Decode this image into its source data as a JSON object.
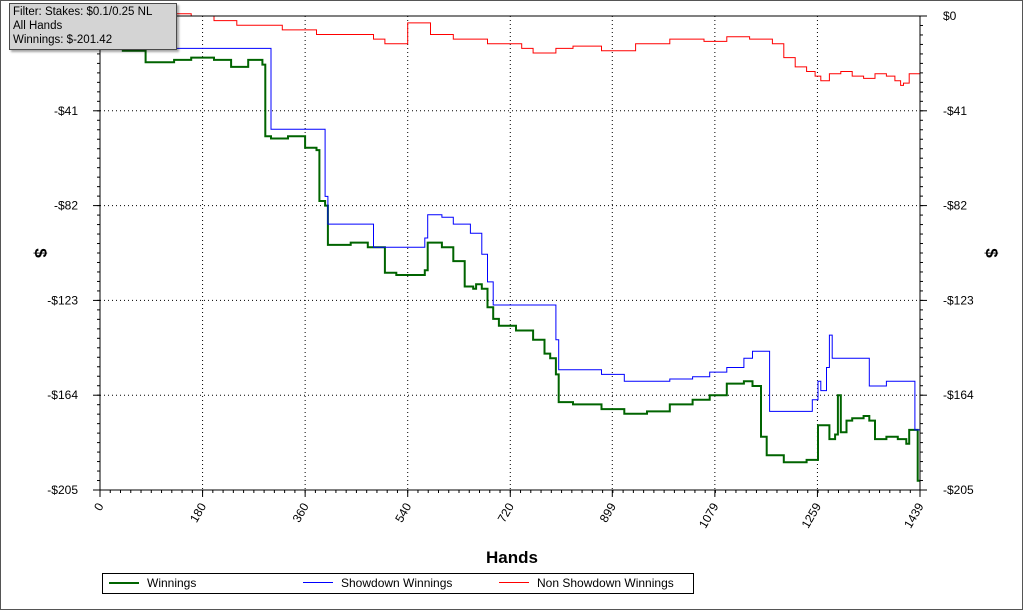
{
  "filter_box": {
    "line1": "Filter: Stakes: $0.1/0.25 NL",
    "line2": "All Hands",
    "line3": "Winnings: $-201.42"
  },
  "chart_data": {
    "type": "line",
    "xlabel": "Hands",
    "ylabel": "$",
    "xlim": [
      0,
      1439
    ],
    "ylim": [
      -205,
      0
    ],
    "x_ticks": [
      0,
      180,
      360,
      540,
      720,
      899,
      1079,
      1259,
      1439
    ],
    "x_tick_labels": [
      "0",
      "180",
      "360",
      "540",
      "720",
      "899",
      "1079",
      "1259",
      "1439"
    ],
    "y_ticks": [
      0,
      -41,
      -82,
      -123,
      -164,
      -205
    ],
    "y_tick_labels": [
      "$0",
      "-$41",
      "-$82",
      "-$123",
      "-$164",
      "-$205"
    ],
    "grid": true,
    "legend_position": "bottom",
    "series": [
      {
        "name": "Winnings",
        "color": "#006400",
        "x": [
          0,
          40,
          80,
          85,
          130,
          160,
          200,
          230,
          260,
          285,
          290,
          300,
          330,
          350,
          360,
          380,
          385,
          395,
          400,
          440,
          470,
          480,
          500,
          520,
          550,
          570,
          575,
          590,
          600,
          620,
          640,
          655,
          660,
          670,
          680,
          690,
          700,
          730,
          760,
          780,
          790,
          800,
          805,
          830,
          880,
          920,
          960,
          1000,
          1040,
          1070,
          1100,
          1130,
          1145,
          1160,
          1170,
          1175,
          1200,
          1225,
          1240,
          1260,
          1270,
          1280,
          1290,
          1295,
          1300,
          1310,
          1320,
          1330,
          1340,
          1350,
          1360,
          1380,
          1400,
          1415,
          1420,
          1425,
          1435,
          1439
        ],
        "y": [
          0,
          -15,
          -20,
          -20,
          -19,
          -18,
          -19,
          -22,
          -19,
          -21,
          -52,
          -53,
          -52,
          -52,
          -57,
          -58,
          -80,
          -82,
          -99,
          -98,
          -100,
          -100,
          -111,
          -112,
          -112,
          -110,
          -98,
          -98,
          -100,
          -106,
          -117,
          -118,
          -116,
          -118,
          -126,
          -131,
          -134,
          -136,
          -140,
          -146,
          -148,
          -155,
          -167,
          -168,
          -170,
          -172,
          -171,
          -168,
          -166,
          -164,
          -159,
          -158,
          -160,
          -182,
          -190,
          -190,
          -193,
          -193,
          -192,
          -177,
          -177,
          -183,
          -181,
          -164,
          -180,
          -175,
          -174,
          -174,
          -173,
          -175,
          -183,
          -182,
          -183,
          -185,
          -179,
          -179,
          -201,
          -201
        ]
      },
      {
        "name": "Showdown Winnings",
        "color": "#0000ff",
        "x": [
          0,
          40,
          75,
          290,
          300,
          330,
          385,
          395,
          400,
          440,
          470,
          480,
          520,
          550,
          570,
          575,
          590,
          600,
          620,
          650,
          655,
          660,
          670,
          680,
          690,
          700,
          730,
          760,
          780,
          790,
          800,
          805,
          830,
          880,
          920,
          960,
          1000,
          1040,
          1070,
          1100,
          1130,
          1145,
          1160,
          1170,
          1175,
          1240,
          1250,
          1260,
          1265,
          1275,
          1280,
          1285,
          1290,
          1330,
          1350,
          1380,
          1420,
          1430,
          1439
        ],
        "y": [
          0,
          -14,
          -14,
          -14,
          -49,
          -49,
          -49,
          -78,
          -90,
          -90,
          -90,
          -100,
          -100,
          -100,
          -96,
          -86,
          -86,
          -87,
          -90,
          -94,
          -94,
          -94,
          -103,
          -115,
          -125,
          -125,
          -125,
          -125,
          -125,
          -125,
          -140,
          -153,
          -153,
          -155,
          -158,
          -158,
          -157,
          -156,
          -154,
          -152,
          -148,
          -145,
          -145,
          -145,
          -171,
          -171,
          -166,
          -158,
          -162,
          -152,
          -138,
          -148,
          -148,
          -148,
          -160,
          -158,
          -158,
          -179,
          -179
        ]
      },
      {
        "name": "Non Showdown Winnings",
        "color": "#ff0000",
        "x": [
          0,
          40,
          80,
          120,
          160,
          200,
          240,
          280,
          320,
          360,
          380,
          420,
          480,
          500,
          540,
          580,
          620,
          680,
          700,
          740,
          760,
          800,
          830,
          880,
          940,
          1000,
          1060,
          1100,
          1140,
          1180,
          1200,
          1220,
          1240,
          1255,
          1265,
          1280,
          1300,
          1320,
          1340,
          1360,
          1380,
          1395,
          1405,
          1410,
          1420,
          1430,
          1439
        ],
        "y": [
          0,
          1,
          0,
          1,
          0,
          -2,
          -4,
          -4,
          -6,
          -6,
          -8,
          -8,
          -10,
          -12,
          -3,
          -8,
          -10,
          -12,
          -12,
          -14,
          -16,
          -14,
          -13,
          -15,
          -12,
          -10,
          -11,
          -9,
          -10,
          -12,
          -18,
          -22,
          -24,
          -26,
          -28,
          -25,
          -24,
          -26,
          -27,
          -25,
          -26,
          -28,
          -30,
          -29,
          -25,
          -25,
          -25
        ]
      }
    ]
  }
}
